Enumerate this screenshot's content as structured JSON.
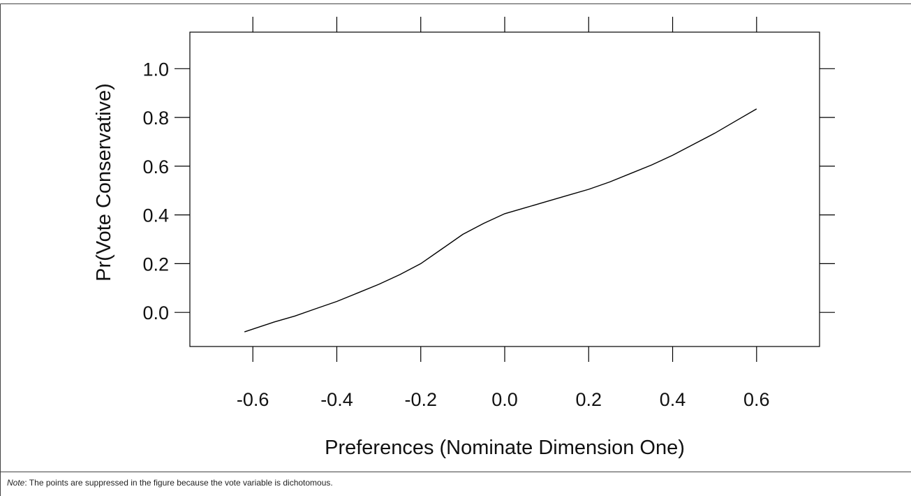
{
  "chart_data": {
    "type": "line",
    "xlabel": "Preferences (Nominate Dimension One)",
    "ylabel": "Pr(Vote Conservative)",
    "xlim": [
      -0.75,
      0.75
    ],
    "ylim": [
      -0.14,
      1.15
    ],
    "xticks": [
      -0.6,
      -0.4,
      -0.2,
      0.0,
      0.2,
      0.4,
      0.6
    ],
    "xtick_labels": [
      "-0.6",
      "-0.4",
      "-0.2",
      "0.0",
      "0.2",
      "0.4",
      "0.6"
    ],
    "yticks": [
      0.0,
      0.2,
      0.4,
      0.6,
      0.8,
      1.0
    ],
    "ytick_labels": [
      "0.0",
      "0.2",
      "0.4",
      "0.6",
      "0.8",
      "1.0"
    ],
    "grid": false,
    "series": [
      {
        "x": [
          -0.62,
          -0.55,
          -0.5,
          -0.45,
          -0.4,
          -0.35,
          -0.3,
          -0.25,
          -0.2,
          -0.15,
          -0.1,
          -0.05,
          0.0,
          0.05,
          0.1,
          0.15,
          0.2,
          0.25,
          0.3,
          0.35,
          0.4,
          0.45,
          0.5,
          0.55,
          0.6
        ],
        "y": [
          -0.08,
          -0.04,
          -0.015,
          0.015,
          0.045,
          0.08,
          0.115,
          0.155,
          0.2,
          0.26,
          0.32,
          0.365,
          0.405,
          0.43,
          0.455,
          0.48,
          0.505,
          0.535,
          0.57,
          0.605,
          0.645,
          0.69,
          0.735,
          0.785,
          0.835
        ]
      }
    ]
  },
  "note": {
    "label": "Note",
    "text": ": The points are suppressed in the figure because the vote variable is dichotomous."
  }
}
